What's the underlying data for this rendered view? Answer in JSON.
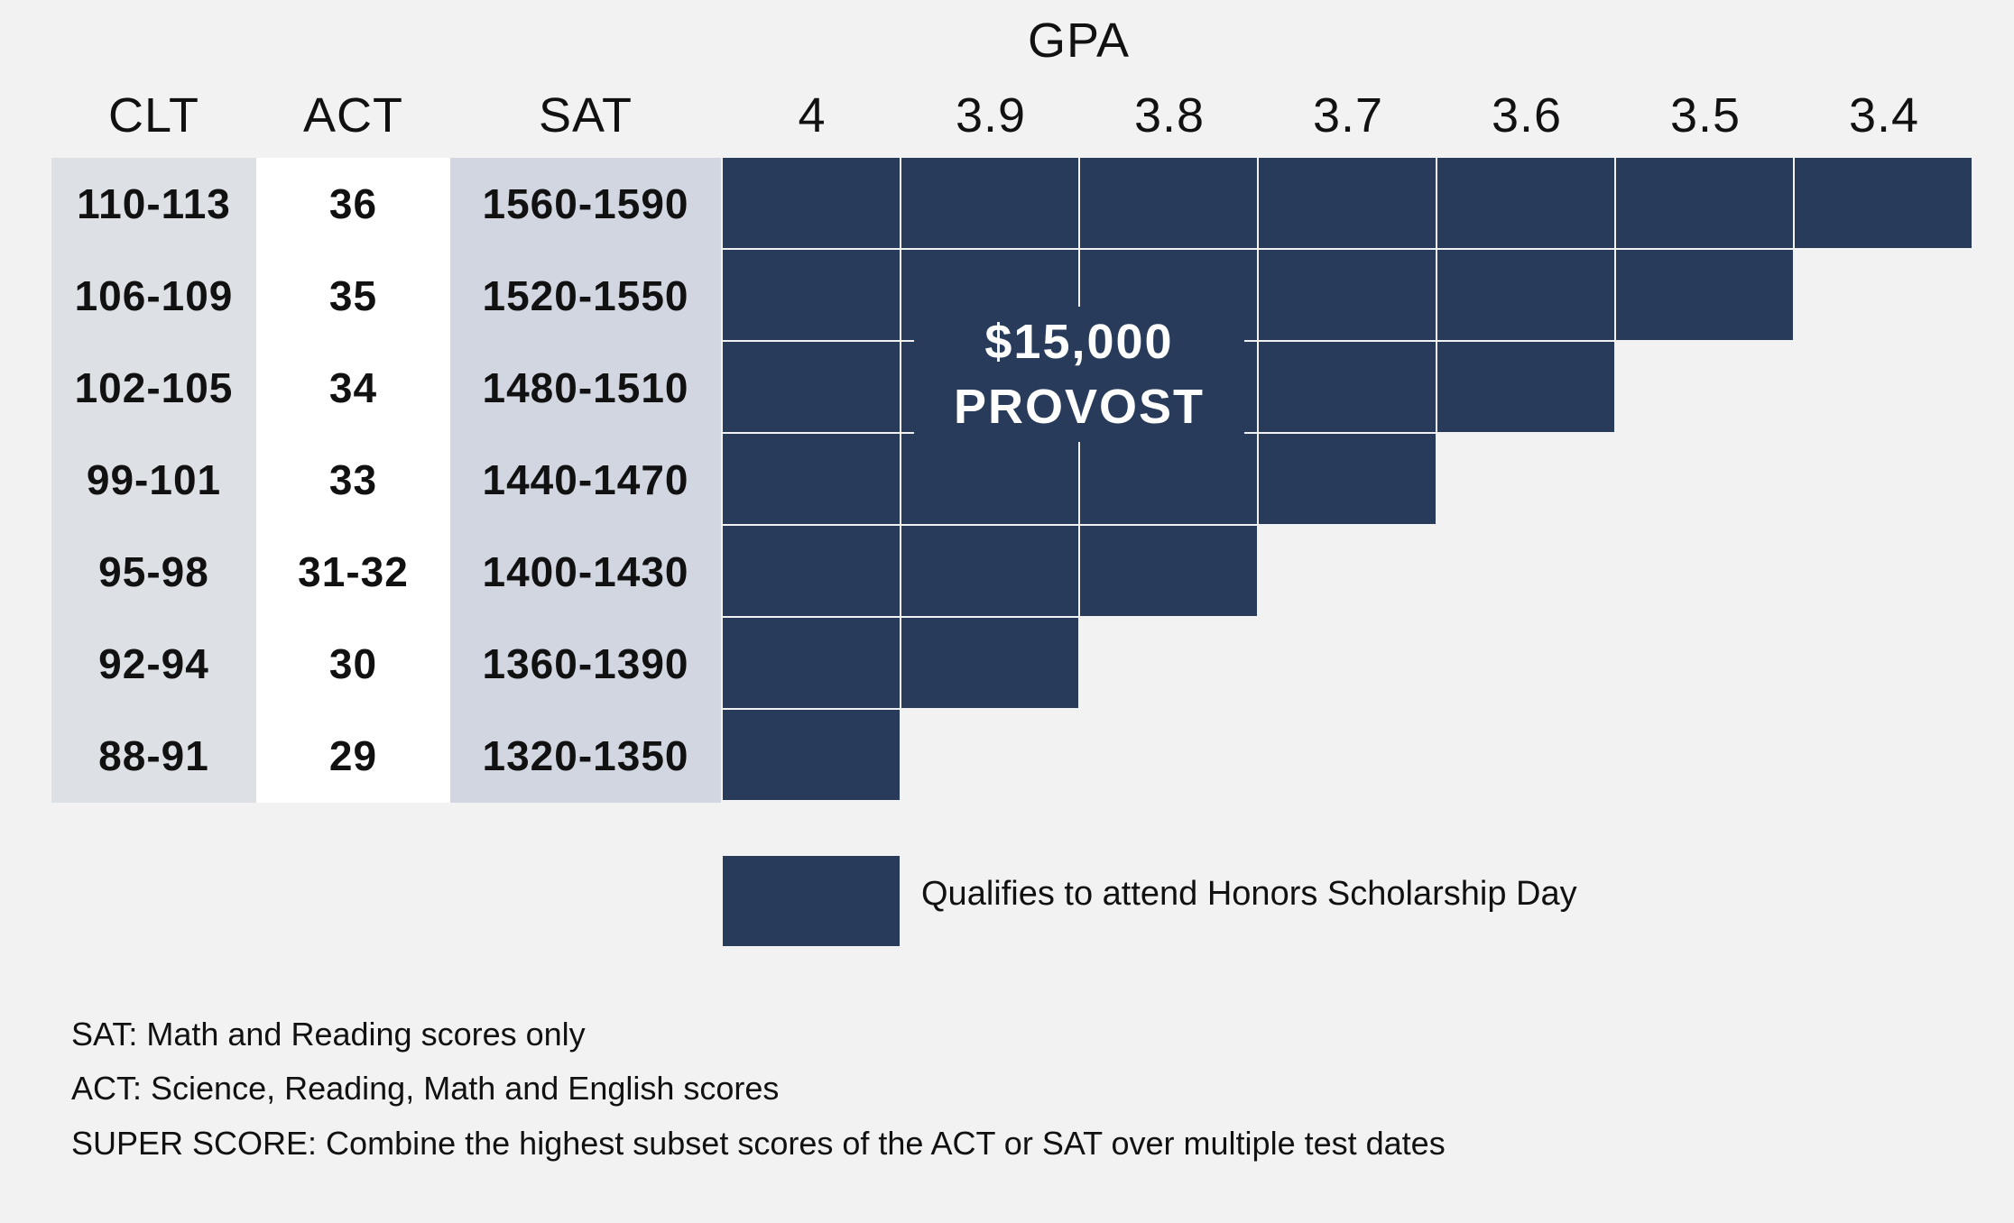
{
  "header": {
    "gpa_label": "GPA",
    "clt_label": "CLT",
    "act_label": "ACT",
    "sat_label": "SAT"
  },
  "gpa_columns": [
    "4",
    "3.9",
    "3.8",
    "3.7",
    "3.6",
    "3.5",
    "3.4"
  ],
  "rows": [
    {
      "clt": "110-113",
      "act": "36",
      "sat": "1560-1590",
      "qualifying_gpa_count": 7
    },
    {
      "clt": "106-109",
      "act": "35",
      "sat": "1520-1550",
      "qualifying_gpa_count": 6
    },
    {
      "clt": "102-105",
      "act": "34",
      "sat": "1480-1510",
      "qualifying_gpa_count": 5
    },
    {
      "clt": "99-101",
      "act": "33",
      "sat": "1440-1470",
      "qualifying_gpa_count": 4
    },
    {
      "clt": "95-98",
      "act": "31-32",
      "sat": "1400-1430",
      "qualifying_gpa_count": 3
    },
    {
      "clt": "92-94",
      "act": "30",
      "sat": "1360-1390",
      "qualifying_gpa_count": 2
    },
    {
      "clt": "88-91",
      "act": "29",
      "sat": "1320-1350",
      "qualifying_gpa_count": 1
    }
  ],
  "award": {
    "amount": "$15,000",
    "name": "PROVOST"
  },
  "legend": {
    "label": "Qualifies to attend Honors Scholarship Day"
  },
  "notes": [
    "SAT: Math and Reading scores only",
    "ACT: Science, Reading, Math and English scores",
    "SUPER SCORE: Combine the highest subset scores of the ACT or SAT over multiple test dates"
  ],
  "colors": {
    "qualify_fill": "#283b5b",
    "clt_column_bg": "#dde0e4",
    "act_column_bg": "#ffffff",
    "sat_column_bg": "#d1d6e1",
    "page_bg": "#f2f2f3"
  }
}
